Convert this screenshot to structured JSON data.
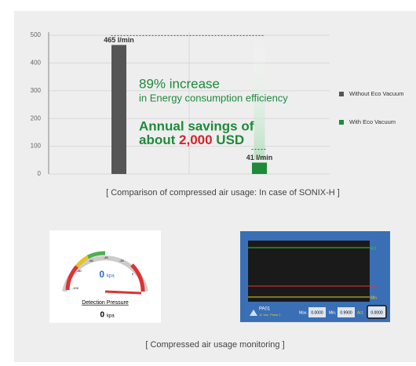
{
  "chart_data": {
    "type": "bar",
    "categories": [
      null,
      null
    ],
    "series": [
      {
        "name": "Without Eco Vacuum",
        "color": "#555555",
        "values": [
          465,
          null
        ],
        "value_labels": [
          "465 l/min",
          null
        ]
      },
      {
        "name": "With Eco Vacuum",
        "color": "#1e8a3a",
        "values": [
          null,
          41
        ],
        "value_labels": [
          null,
          "41 l/min"
        ]
      }
    ],
    "ylim": [
      0,
      500
    ],
    "yticks": [
      0,
      100,
      200,
      300,
      400,
      500
    ],
    "grid": true,
    "legend": "right",
    "annotations": [
      "89% increase",
      "in Energy consumption efficiency",
      "Annual savings of",
      "about",
      "2,000",
      "USD"
    ]
  },
  "captions": [
    "[ Comparison of compressed air usage:  In case of SONIX-H ]",
    "[ Compressed air usage monitoring ]"
  ],
  "gauge": {
    "ticks": [
      "-100",
      "-80",
      "-60",
      "-40",
      "-20",
      "0"
    ],
    "reading": "0",
    "unit": "kpa",
    "label": "Detection Pressure",
    "value": "0",
    "value_unit": "kpa"
  },
  "monitor": {
    "lines": [
      "Act",
      "Max",
      "Min"
    ],
    "channel": "PA01",
    "channel_sub": "11 Vac. Press 1",
    "fields": [
      "Max.",
      "0.0000",
      "Min.",
      "0.9900",
      "Act.",
      "0.0000"
    ]
  }
}
